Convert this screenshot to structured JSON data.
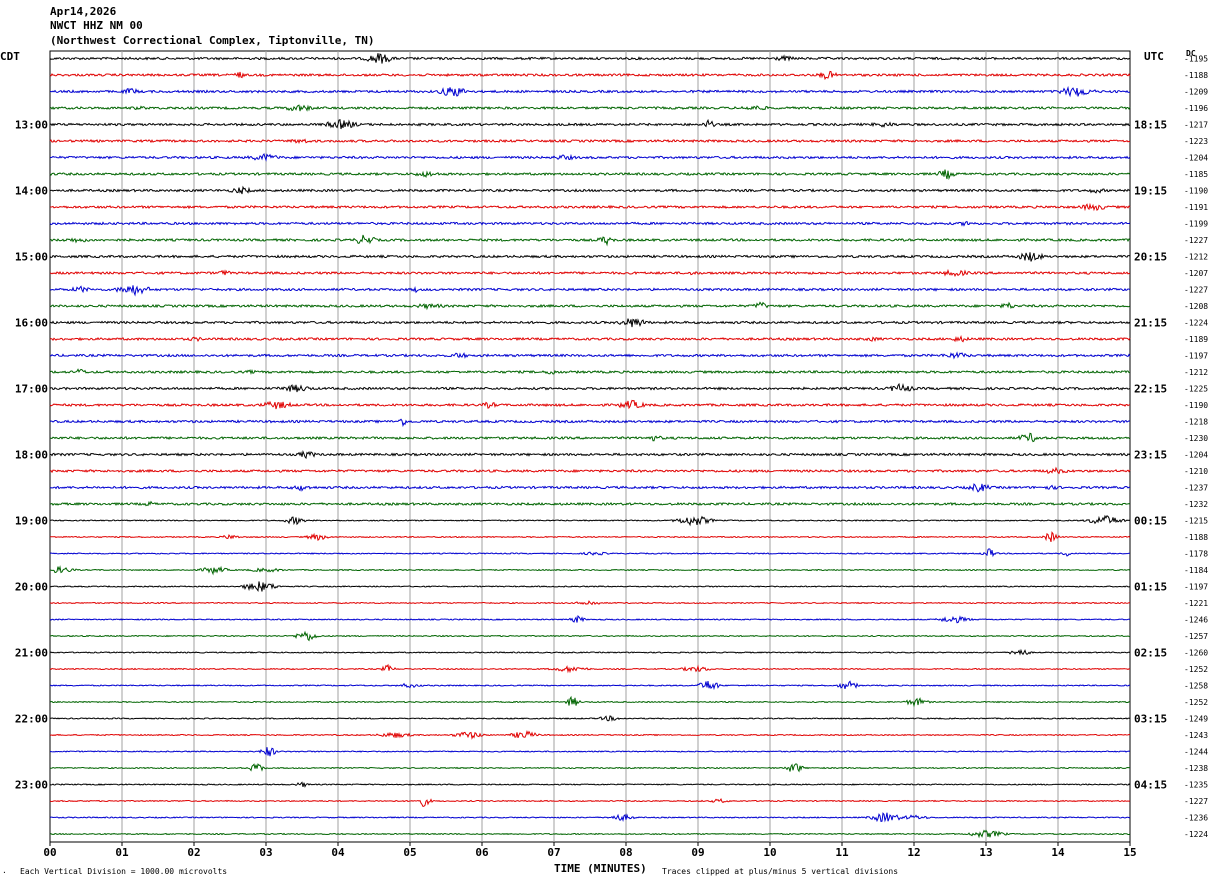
{
  "header": {
    "date": "Apr14,2026",
    "station": "NWCT HHZ NM 00",
    "location": "(Northwest Correctional Complex, Tiptonville, TN)"
  },
  "left_tz": "CDT",
  "right_tz": "UTC",
  "dc_label": "DC",
  "footer": {
    "left_note": "Each Vertical Division = 1000.00 microvolts",
    "right_note": "Traces clipped at plus/minus 5 vertical divisions",
    "corner_mark": "·"
  },
  "colors": {
    "trace_cycle": [
      "#000000",
      "#e00000",
      "#0000d0",
      "#006400"
    ],
    "grid": "#a0a0a0",
    "frame": "#000000"
  },
  "chart_data": {
    "type": "line",
    "subtype": "helicorder",
    "xlabel": "TIME (MINUTES)",
    "x_ticks": [
      "00",
      "01",
      "02",
      "03",
      "04",
      "05",
      "06",
      "07",
      "08",
      "09",
      "10",
      "11",
      "12",
      "13",
      "14",
      "15"
    ],
    "xlim": [
      0,
      15
    ],
    "traces_per_hour": 4,
    "minutes_per_trace": 15,
    "left_hour_labels": [
      "13:00",
      "14:00",
      "15:00",
      "16:00",
      "17:00",
      "18:00",
      "19:00",
      "20:00",
      "21:00",
      "22:00",
      "23:00"
    ],
    "right_hour_labels": [
      "18:15",
      "19:15",
      "20:15",
      "21:15",
      "22:15",
      "23:15",
      "00:15",
      "01:15",
      "02:15",
      "03:15",
      "04:15"
    ],
    "dc_offsets": [
      -1195,
      -1188,
      -1209,
      -1196,
      -1217,
      -1223,
      -1204,
      -1185,
      -1190,
      -1191,
      -1199,
      -1227,
      -1212,
      -1207,
      -1227,
      -1208,
      -1224,
      -1189,
      -1197,
      -1212,
      -1225,
      -1190,
      -1218,
      -1230,
      -1204,
      -1210,
      -1237,
      -1232,
      -1215,
      -1188,
      -1178,
      -1184,
      -1197,
      -1221,
      -1246,
      -1257,
      -1260,
      -1252,
      -1258,
      -1252,
      -1249,
      -1243,
      -1244,
      -1238,
      -1235,
      -1227,
      -1236,
      -1224
    ],
    "vertical_division_microvolts": 1000.0,
    "clip_divisions": 5
  }
}
